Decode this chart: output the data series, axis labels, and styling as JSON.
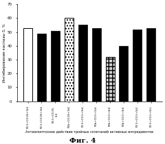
{
  "values": [
    53,
    49,
    51,
    60,
    55,
    53,
    32,
    40,
    52,
    53
  ],
  "bar_styles": [
    "white",
    "black",
    "black",
    "dots",
    "black",
    "black",
    "plaid",
    "black",
    "black",
    "black"
  ],
  "xlabels": [
    "P2.5+C0.05+3t4",
    "P2.5+C0.05+3t4",
    "P2.5+C0.05-\n6.4",
    "P2b+C0.05+3t4",
    "P2.5+C0.5+3t4",
    "P2b+C0.5+1t4",
    "P2b+C0.5+3t4",
    "P2b+C0.5+3t4",
    "P2.5+C0.5+3t2",
    "P2.5+C0.5+3t1"
  ],
  "ylabel": "Ингибирование каспазы-3, %",
  "xlabel": "Антиапоптозное действие тройных сочетаний активных ингредиентов",
  "fig_label": "Фиг. 4",
  "ylim": [
    0,
    70
  ],
  "yticks": [
    0,
    10,
    20,
    30,
    40,
    50,
    60,
    70
  ],
  "background_color": "#ffffff"
}
